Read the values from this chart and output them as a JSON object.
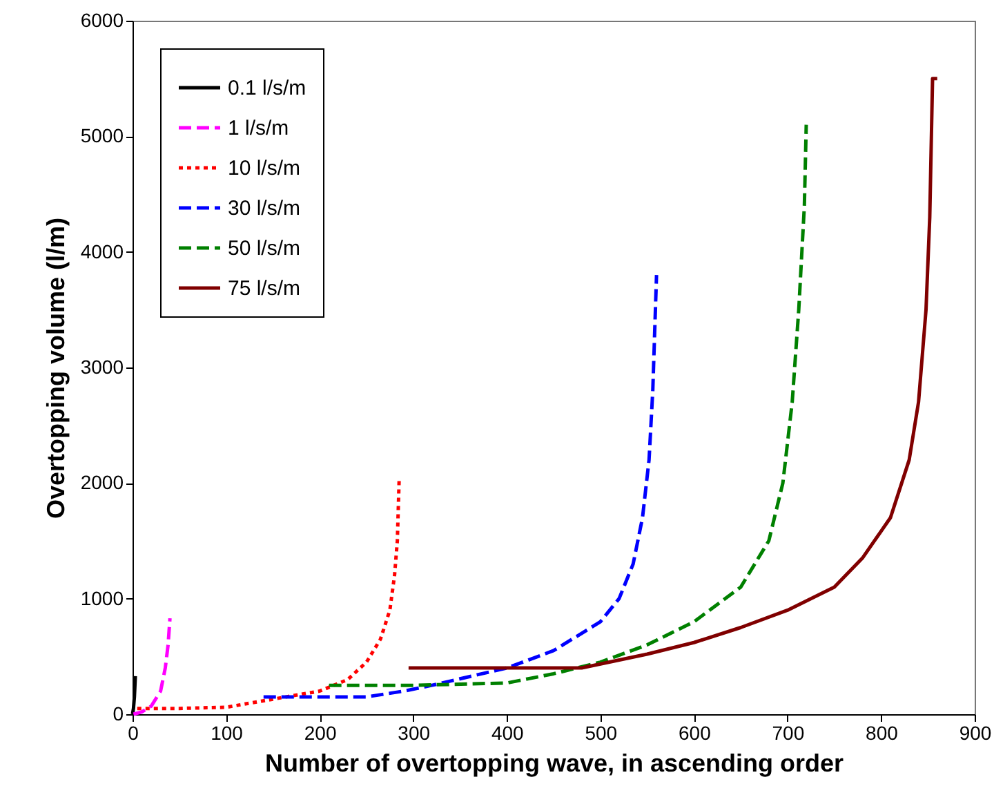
{
  "chart_data": {
    "type": "line",
    "xlabel": "Number of overtopping wave, in ascending order",
    "ylabel": "Overtopping volume (l/m)",
    "xlim": [
      0,
      900
    ],
    "xticks": [
      0,
      100,
      200,
      300,
      400,
      500,
      600,
      700,
      800,
      900
    ],
    "ylim": [
      0,
      6000
    ],
    "yticks": [
      0,
      1000,
      2000,
      3000,
      4000,
      5000,
      6000
    ],
    "grid": false,
    "legend": "top left",
    "marker": "none",
    "series": [
      {
        "name": "0.1 l/s/m",
        "color": "#000000",
        "line_style": "solid",
        "x": [
          0,
          1,
          2,
          3
        ],
        "values": [
          0,
          50,
          150,
          330
        ]
      },
      {
        "name": "1 l/s/m",
        "color": "#ff00ff",
        "line_style": "dashed",
        "x": [
          1,
          10,
          20,
          30,
          35,
          38,
          40
        ],
        "values": [
          0,
          20,
          70,
          200,
          400,
          600,
          830
        ]
      },
      {
        "name": "10 l/s/m",
        "color": "#ff0000",
        "line_style": "dotted",
        "x": [
          5,
          50,
          100,
          150,
          200,
          230,
          250,
          265,
          275,
          280,
          283,
          285
        ],
        "values": [
          50,
          50,
          60,
          130,
          200,
          300,
          450,
          650,
          900,
          1200,
          1500,
          2050
        ]
      },
      {
        "name": "30 l/s/m",
        "color": "#0000ff",
        "line_style": "dashed",
        "x": [
          140,
          250,
          290,
          320,
          400,
          450,
          500,
          520,
          535,
          545,
          552,
          556,
          560
        ],
        "values": [
          150,
          150,
          200,
          250,
          400,
          550,
          800,
          1000,
          1300,
          1700,
          2200,
          2800,
          3800
        ]
      },
      {
        "name": "50 l/s/m",
        "color": "#008000",
        "line_style": "dashed",
        "x": [
          210,
          300,
          400,
          450,
          500,
          550,
          600,
          650,
          680,
          695,
          705,
          712,
          718,
          720
        ],
        "values": [
          250,
          250,
          270,
          350,
          450,
          600,
          800,
          1100,
          1500,
          2000,
          2700,
          3500,
          4400,
          5100
        ]
      },
      {
        "name": "75 l/s/m",
        "color": "#800000",
        "line_style": "solid",
        "x": [
          295,
          480,
          550,
          600,
          650,
          700,
          750,
          780,
          810,
          830,
          840,
          848,
          852,
          855,
          860
        ],
        "values": [
          400,
          400,
          520,
          620,
          750,
          900,
          1100,
          1350,
          1700,
          2200,
          2700,
          3500,
          4300,
          5500,
          5500
        ]
      }
    ]
  }
}
